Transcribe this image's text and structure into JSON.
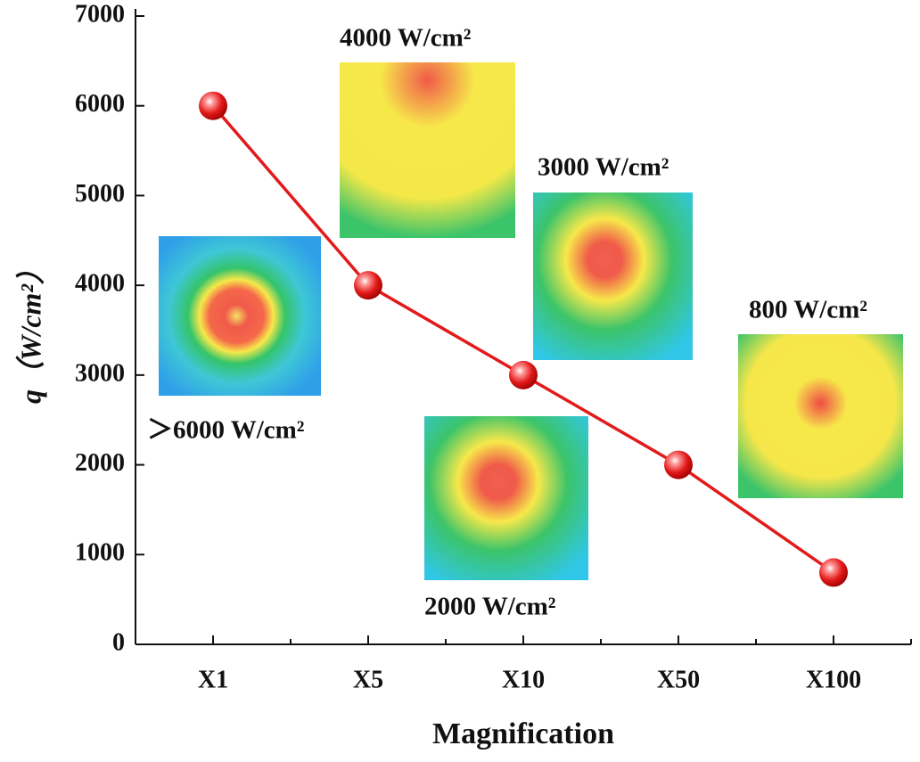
{
  "chart_data": {
    "type": "line",
    "x_label": "Magnification",
    "y_label": "q（W/cm²）",
    "categories": [
      "X1",
      "X5",
      "X10",
      "X50",
      "X100"
    ],
    "series": [
      {
        "name": null,
        "color": "#e31a1a",
        "values": [
          6000,
          4000,
          3000,
          2000,
          800
        ]
      }
    ],
    "ylim": [
      0,
      7000
    ],
    "yticks": [
      0,
      1000,
      2000,
      3000,
      4000,
      5000,
      6000,
      7000
    ],
    "annotations": [
      "＞6000 W/cm²",
      "4000 W/cm²",
      "3000 W/cm²",
      "2000 W/cm²",
      "800 W/cm²"
    ]
  }
}
